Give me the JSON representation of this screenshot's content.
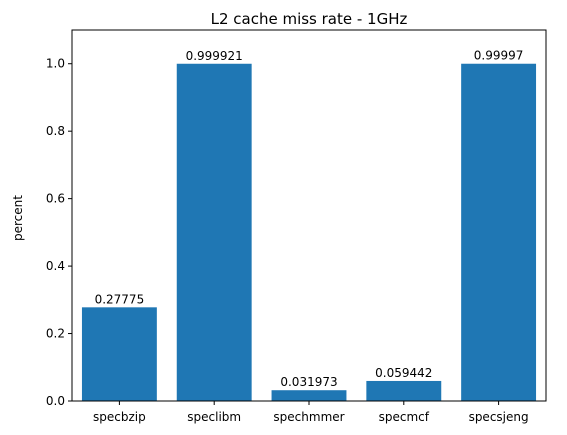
{
  "chart_data": {
    "type": "bar",
    "title": "L2 cache miss rate - 1GHz",
    "xlabel": "",
    "ylabel": "percent",
    "categories": [
      "specbzip",
      "speclibm",
      "spechmmer",
      "specmcf",
      "specsjeng"
    ],
    "values": [
      0.27775,
      0.999921,
      0.031973,
      0.059442,
      0.99997
    ],
    "data_labels": [
      "0.27775",
      "0.999921",
      "0.031973",
      "0.059442",
      "0.99997"
    ],
    "ylim": [
      0,
      1.1
    ],
    "yticks": [
      "0.0",
      "0.2",
      "0.4",
      "0.6",
      "0.8",
      "1.0"
    ],
    "grid": false,
    "legend": "none",
    "bar_color": "#1f77b4"
  }
}
